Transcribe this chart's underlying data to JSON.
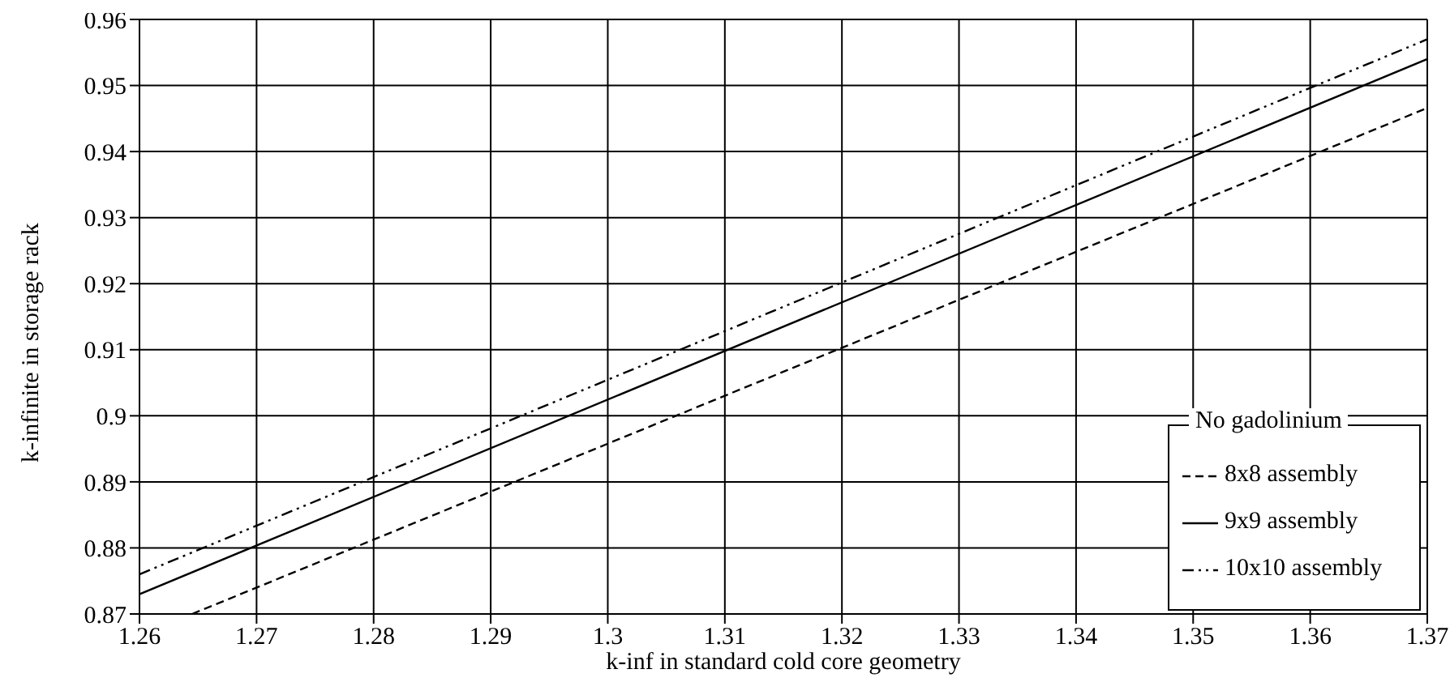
{
  "chart_data": {
    "type": "line",
    "xlabel": "k-inf in standard cold core geometry",
    "ylabel": "k-infinite in storage rack",
    "legend_title": "No gadolinium",
    "legend": "right",
    "grid": true,
    "xlim": [
      1.26,
      1.37
    ],
    "xticks": [
      1.26,
      1.27,
      1.28,
      1.29,
      1.3,
      1.31,
      1.32,
      1.33,
      1.34,
      1.35,
      1.36,
      1.37
    ],
    "ylim": [
      0.87,
      0.96
    ],
    "yticks": [
      0.87,
      0.88,
      0.89,
      0.9,
      0.91,
      0.92,
      0.93,
      0.94,
      0.95,
      0.96
    ],
    "series": [
      {
        "name": "8x8 assembly",
        "color": "#000000",
        "line_style": "dashed",
        "x": [
          1.2645,
          1.37
        ],
        "values": [
          0.87,
          0.9466
        ]
      },
      {
        "name": "9x9 assembly",
        "color": "#000000",
        "line_style": "solid",
        "x": [
          1.26,
          1.37
        ],
        "values": [
          0.873,
          0.954
        ]
      },
      {
        "name": "10x10 assembly",
        "color": "#000000",
        "line_style": "dashdot",
        "x": [
          1.26,
          1.37
        ],
        "values": [
          0.876,
          0.957
        ]
      }
    ]
  }
}
